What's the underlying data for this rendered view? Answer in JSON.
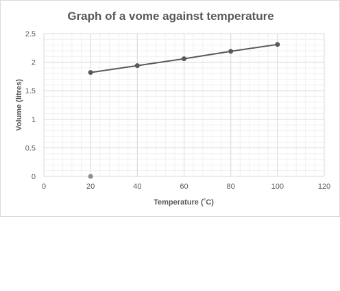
{
  "chart_data": {
    "type": "scatter",
    "title": "Graph of a vome against temperature",
    "xlabel": "Temperature (˚C)",
    "ylabel": "Volume (litres)",
    "xlim": [
      0,
      120
    ],
    "ylim": [
      0,
      2.5
    ],
    "x_ticks": [
      "0",
      "20",
      "40",
      "60",
      "80",
      "100",
      "120"
    ],
    "y_ticks": [
      "0",
      "0.5",
      "1",
      "1.5",
      "2",
      "2.5"
    ],
    "x_tick_values": [
      0,
      20,
      40,
      60,
      80,
      100,
      120
    ],
    "y_tick_values": [
      0,
      0.5,
      1,
      1.5,
      2,
      2.5
    ],
    "grid": true,
    "minor_grid": true,
    "legend": "none",
    "series": [
      {
        "x": [
          20,
          40,
          60,
          80,
          100
        ],
        "y": [
          1.82,
          1.94,
          2.06,
          2.19,
          2.31
        ],
        "connected": true,
        "color": "#595959"
      },
      {
        "x": [
          20
        ],
        "y": [
          0
        ],
        "connected": false,
        "color": "#8c8c8c"
      }
    ]
  }
}
